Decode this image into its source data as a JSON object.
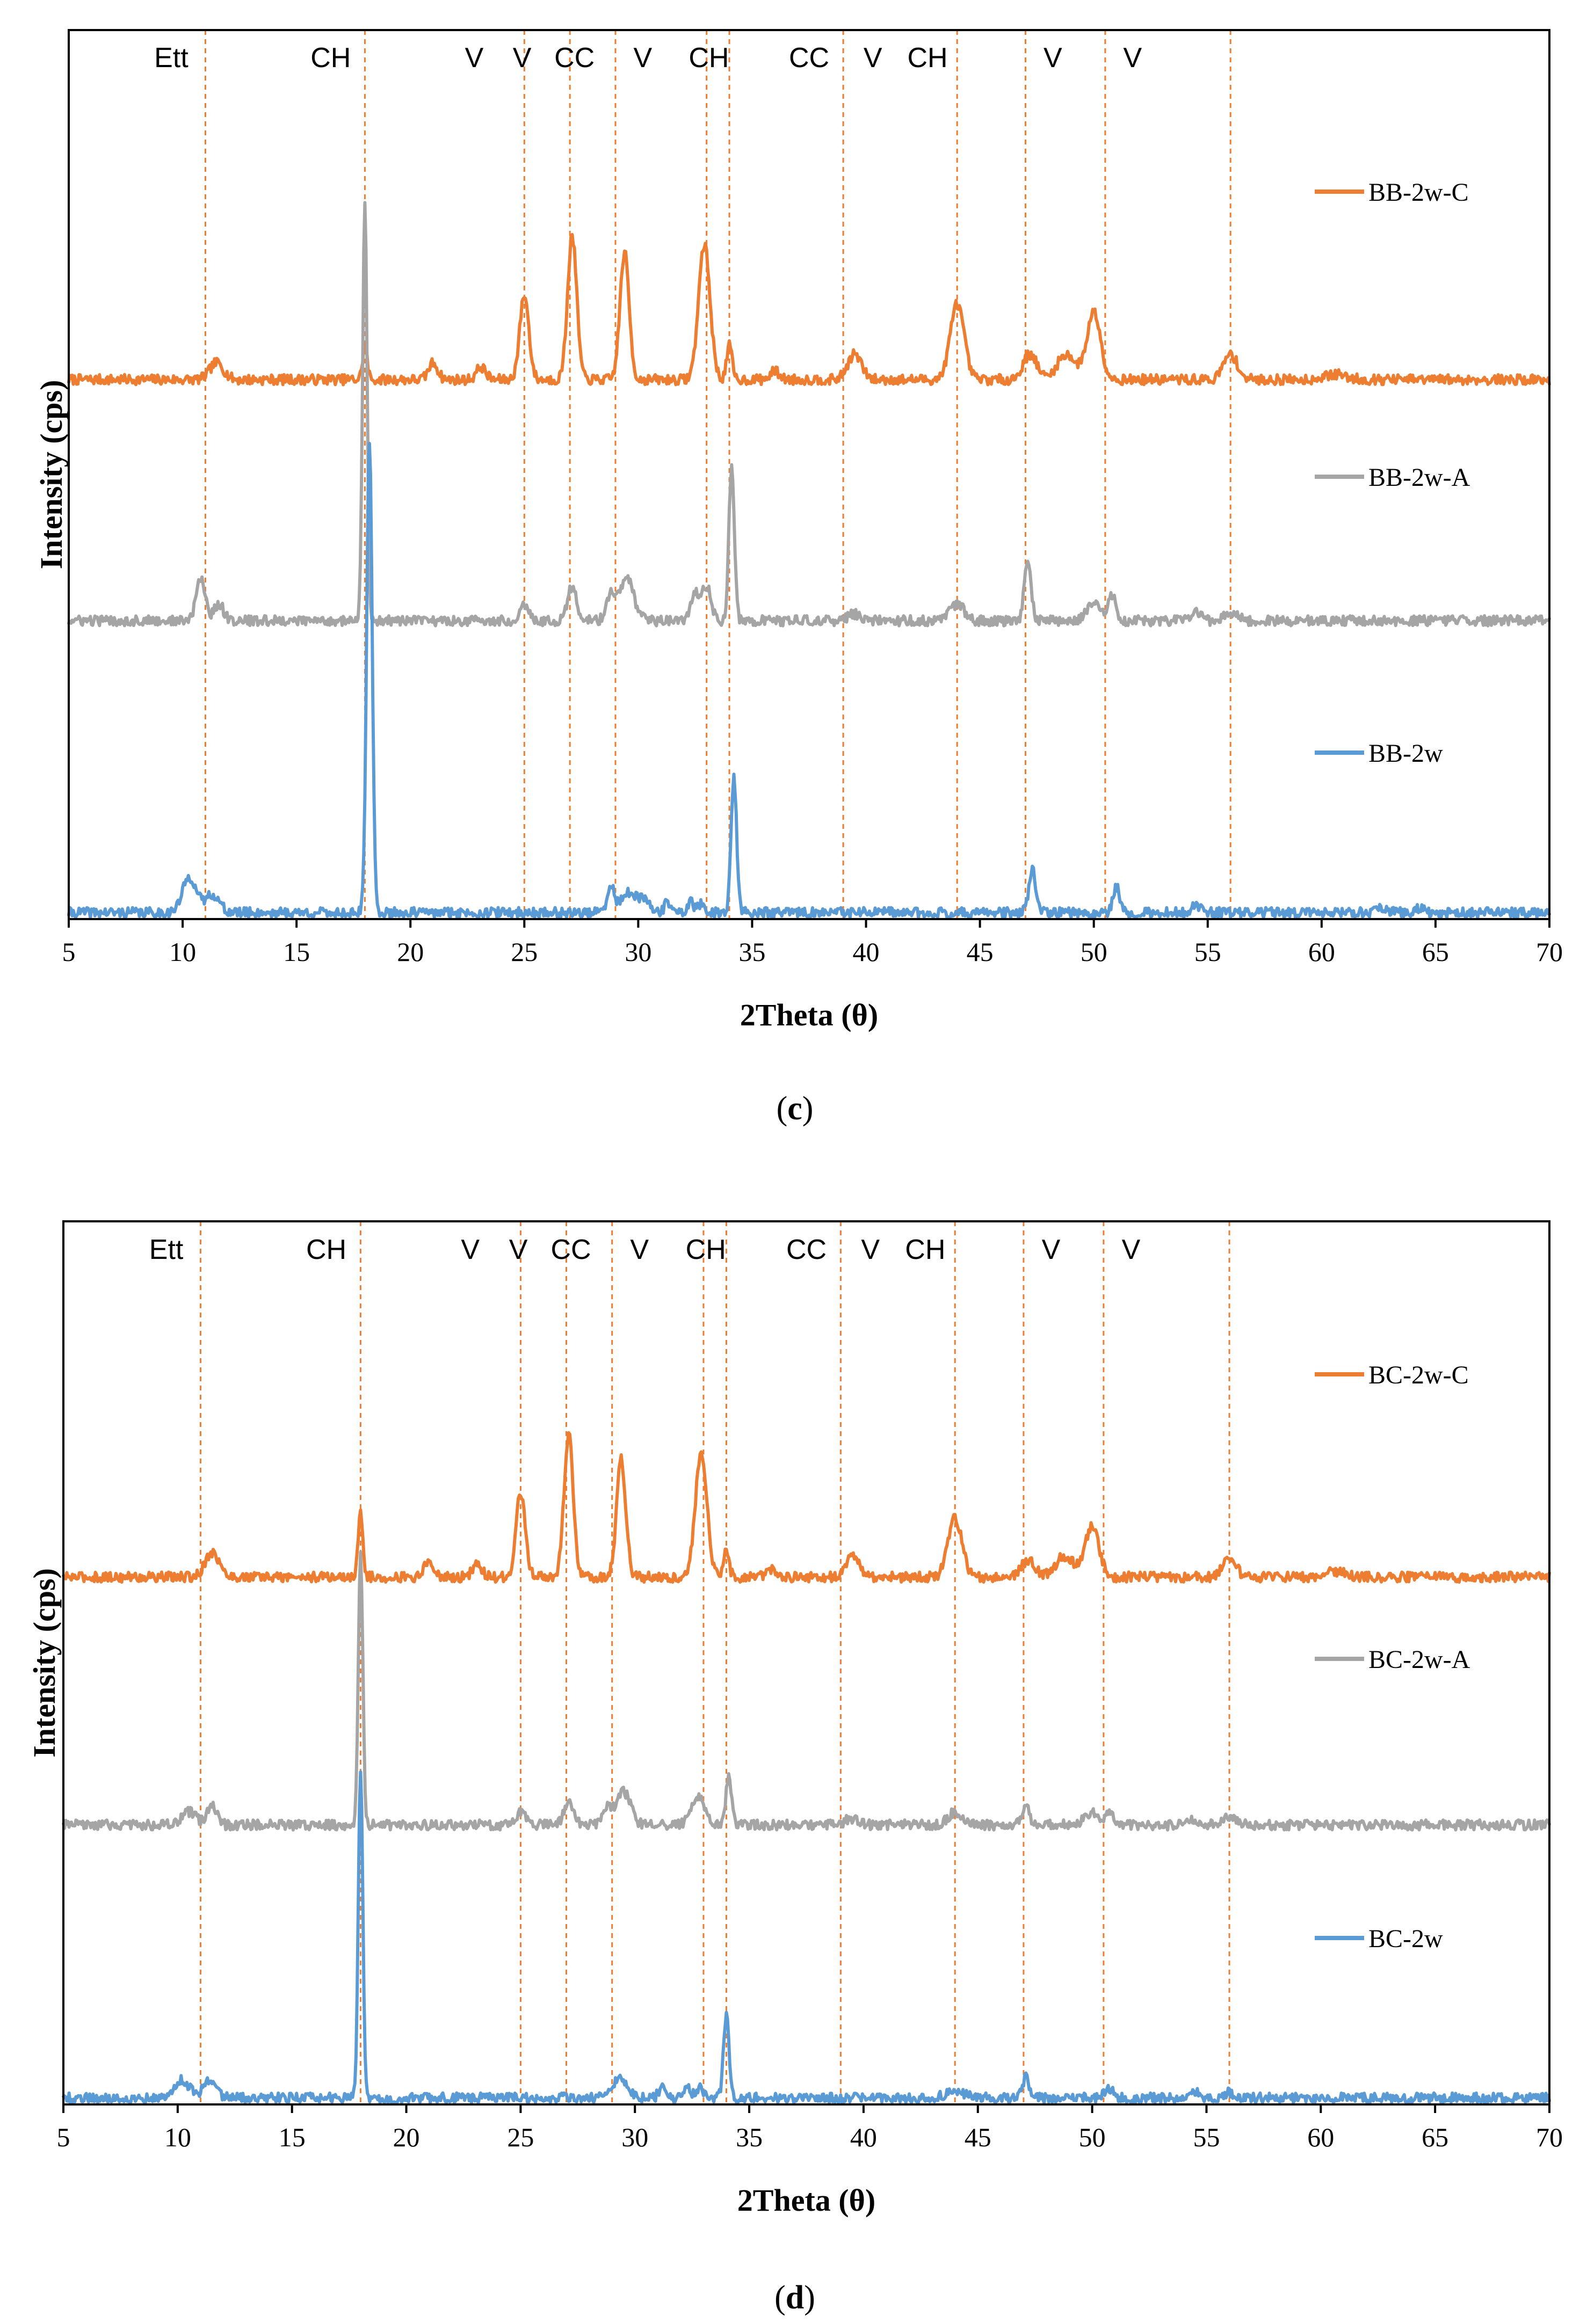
{
  "chart_data": [
    {
      "id": "c",
      "type": "line",
      "caption": "c",
      "xlabel": "2Theta (θ)",
      "ylabel": "Intensity (cps)",
      "xlim": [
        5,
        70
      ],
      "xticks": [
        5,
        10,
        15,
        20,
        25,
        30,
        35,
        40,
        45,
        50,
        55,
        60,
        65,
        70
      ],
      "y_axis_ticks": false,
      "grid": false,
      "reference_lines_2theta": [
        11,
        18,
        25,
        27,
        29,
        33,
        34,
        39,
        44,
        47,
        50.5,
        56
      ],
      "phase_annotations": [
        {
          "label": "Ett",
          "x": 9.5
        },
        {
          "label": "CH",
          "x": 16.5
        },
        {
          "label": "V",
          "x": 22.8
        },
        {
          "label": "V",
          "x": 24.9
        },
        {
          "label": "CC",
          "x": 27.2
        },
        {
          "label": "V",
          "x": 30.2
        },
        {
          "label": "CH",
          "x": 33.1
        },
        {
          "label": "CC",
          "x": 37.5
        },
        {
          "label": "V",
          "x": 40.3
        },
        {
          "label": "CH",
          "x": 42.7
        },
        {
          "label": "V",
          "x": 48.2
        },
        {
          "label": "V",
          "x": 51.7
        }
      ],
      "series": [
        {
          "name": "BB-2w-C",
          "color": "#ED7D31",
          "baseline": 0.63,
          "peaks": [
            [
              11.5,
              0.02,
              0.3
            ],
            [
              18.0,
              0.04,
              0.1
            ],
            [
              21.0,
              0.02,
              0.2
            ],
            [
              23.1,
              0.015,
              0.2
            ],
            [
              25.0,
              0.1,
              0.2
            ],
            [
              27.1,
              0.17,
              0.2
            ],
            [
              29.4,
              0.15,
              0.2
            ],
            [
              32.9,
              0.16,
              0.25
            ],
            [
              34.0,
              0.04,
              0.12
            ],
            [
              36.0,
              0.01,
              0.2
            ],
            [
              39.5,
              0.03,
              0.3
            ],
            [
              44.0,
              0.09,
              0.3
            ],
            [
              47.2,
              0.03,
              0.3
            ],
            [
              48.8,
              0.03,
              0.4
            ],
            [
              50.0,
              0.08,
              0.3
            ],
            [
              56.0,
              0.03,
              0.3
            ],
            [
              60.6,
              0.006,
              0.5
            ]
          ]
        },
        {
          "name": "BB-2w-A",
          "color": "#A5A5A5",
          "baseline": 0.345,
          "peaks": [
            [
              10.8,
              0.05,
              0.2
            ],
            [
              11.6,
              0.02,
              0.2
            ],
            [
              18.0,
              0.49,
              0.1
            ],
            [
              25.0,
              0.02,
              0.2
            ],
            [
              27.1,
              0.04,
              0.2
            ],
            [
              28.8,
              0.03,
              0.2
            ],
            [
              29.5,
              0.05,
              0.3
            ],
            [
              32.5,
              0.03,
              0.2
            ],
            [
              33.0,
              0.04,
              0.2
            ],
            [
              34.1,
              0.18,
              0.12
            ],
            [
              39.5,
              0.008,
              0.3
            ],
            [
              44.0,
              0.02,
              0.3
            ],
            [
              47.1,
              0.07,
              0.15
            ],
            [
              50.0,
              0.02,
              0.3
            ],
            [
              50.8,
              0.03,
              0.15
            ],
            [
              54.5,
              0.01,
              0.2
            ],
            [
              56.0,
              0.01,
              0.3
            ]
          ]
        },
        {
          "name": "BB-2w",
          "color": "#5B9BD5",
          "baseline": 0.0,
          "peaks": [
            [
              10.3,
              0.042,
              0.3
            ],
            [
              11.3,
              0.022,
              0.3
            ],
            [
              18.2,
              0.56,
              0.12
            ],
            [
              28.8,
              0.03,
              0.15
            ],
            [
              29.5,
              0.022,
              0.3
            ],
            [
              30.2,
              0.015,
              0.3
            ],
            [
              31.3,
              0.012,
              0.15
            ],
            [
              32.3,
              0.012,
              0.15
            ],
            [
              32.8,
              0.01,
              0.15
            ],
            [
              34.2,
              0.16,
              0.12
            ],
            [
              47.3,
              0.05,
              0.15
            ],
            [
              51.0,
              0.03,
              0.15
            ],
            [
              54.5,
              0.01,
              0.15
            ],
            [
              62.7,
              0.006,
              0.2
            ],
            [
              64.3,
              0.006,
              0.2
            ]
          ]
        }
      ],
      "legend": [
        "BB-2w-C",
        "BB-2w-A",
        "BB-2w"
      ]
    },
    {
      "id": "d",
      "type": "line",
      "caption": "d",
      "xlabel": "2Theta (θ)",
      "ylabel": "Intensity (cps)",
      "xlim": [
        5,
        70
      ],
      "xticks": [
        5,
        10,
        15,
        20,
        25,
        30,
        35,
        40,
        45,
        50,
        55,
        60,
        65,
        70
      ],
      "y_axis_ticks": false,
      "grid": false,
      "reference_lines_2theta": [
        11,
        18,
        25,
        27,
        29,
        33,
        34,
        39,
        44,
        47,
        50.5,
        56
      ],
      "phase_annotations": [
        {
          "label": "Ett",
          "x": 9.5
        },
        {
          "label": "CH",
          "x": 16.5
        },
        {
          "label": "V",
          "x": 22.8
        },
        {
          "label": "V",
          "x": 24.9
        },
        {
          "label": "CC",
          "x": 27.2
        },
        {
          "label": "V",
          "x": 30.2
        },
        {
          "label": "CH",
          "x": 33.1
        },
        {
          "label": "CC",
          "x": 37.5
        },
        {
          "label": "V",
          "x": 40.3
        },
        {
          "label": "CH",
          "x": 42.7
        },
        {
          "label": "V",
          "x": 48.2
        },
        {
          "label": "V",
          "x": 51.7
        }
      ],
      "series": [
        {
          "name": "BC-2w-C",
          "color": "#ED7D31",
          "baseline": 0.62,
          "peaks": [
            [
              11.5,
              0.03,
              0.3
            ],
            [
              18.0,
              0.08,
              0.1
            ],
            [
              21.0,
              0.02,
              0.2
            ],
            [
              23.1,
              0.015,
              0.2
            ],
            [
              25.0,
              0.1,
              0.2
            ],
            [
              27.1,
              0.17,
              0.2
            ],
            [
              29.4,
              0.14,
              0.2
            ],
            [
              32.9,
              0.15,
              0.25
            ],
            [
              34.0,
              0.03,
              0.12
            ],
            [
              36.0,
              0.01,
              0.2
            ],
            [
              39.5,
              0.025,
              0.3
            ],
            [
              44.0,
              0.07,
              0.3
            ],
            [
              47.2,
              0.02,
              0.3
            ],
            [
              48.8,
              0.025,
              0.4
            ],
            [
              50.0,
              0.06,
              0.3
            ],
            [
              56.0,
              0.02,
              0.3
            ],
            [
              60.6,
              0.006,
              0.5
            ]
          ]
        },
        {
          "name": "BC-2w-A",
          "color": "#A5A5A5",
          "baseline": 0.325,
          "peaks": [
            [
              10.5,
              0.015,
              0.3
            ],
            [
              11.5,
              0.025,
              0.2
            ],
            [
              18.0,
              0.32,
              0.1
            ],
            [
              25.0,
              0.015,
              0.2
            ],
            [
              27.1,
              0.03,
              0.2
            ],
            [
              28.8,
              0.02,
              0.2
            ],
            [
              29.5,
              0.04,
              0.3
            ],
            [
              32.5,
              0.02,
              0.2
            ],
            [
              32.9,
              0.03,
              0.2
            ],
            [
              34.1,
              0.06,
              0.12
            ],
            [
              39.5,
              0.008,
              0.3
            ],
            [
              44.0,
              0.015,
              0.3
            ],
            [
              47.1,
              0.025,
              0.15
            ],
            [
              50.0,
              0.015,
              0.3
            ],
            [
              50.8,
              0.015,
              0.15
            ],
            [
              54.5,
              0.006,
              0.2
            ],
            [
              56.0,
              0.008,
              0.3
            ]
          ]
        },
        {
          "name": "BC-2w",
          "color": "#5B9BD5",
          "baseline": 0.0,
          "peaks": [
            [
              10.2,
              0.022,
              0.3
            ],
            [
              11.4,
              0.02,
              0.3
            ],
            [
              18.0,
              0.39,
              0.1
            ],
            [
              29.3,
              0.022,
              0.35
            ],
            [
              31.2,
              0.015,
              0.15
            ],
            [
              32.3,
              0.012,
              0.15
            ],
            [
              32.8,
              0.012,
              0.15
            ],
            [
              34.0,
              0.1,
              0.12
            ],
            [
              44.0,
              0.008,
              0.4
            ],
            [
              47.1,
              0.025,
              0.15
            ],
            [
              50.7,
              0.012,
              0.2
            ],
            [
              54.5,
              0.006,
              0.2
            ],
            [
              56.0,
              0.006,
              0.3
            ]
          ]
        }
      ],
      "legend": [
        "BC-2w-C",
        "BC-2w-A",
        "BC-2w"
      ]
    }
  ]
}
